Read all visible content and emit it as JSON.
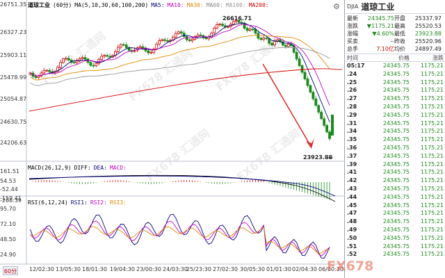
{
  "header": {
    "symbol_label": "道琼工业",
    "period": "(60分)",
    "ma_params": "MA(5,10,30,60,100,200)",
    "ma_items": [
      "MA5:",
      "MA10:",
      "MA30:",
      "MA60:",
      "MA100:",
      "MA200:"
    ]
  },
  "price_axis": [
    "26751.35",
    "26327.23",
    "25903.11",
    "25478.99",
    "25054.87",
    "24630.75",
    "24206.63"
  ],
  "high_marker": "26616.71",
  "low_marker": "23923.88",
  "macd": {
    "label": "MACD(26,12,9)",
    "items": [
      "DIFF:",
      "DEA:",
      "MACD:"
    ],
    "axis": [
      "161.51",
      "54.53",
      "-52.44",
      "-159.41",
      "-266.39"
    ]
  },
  "rsi": {
    "label": "RSI(6,12,24)",
    "items": [
      "RSI1:",
      "RSI2:",
      "RSI3:"
    ],
    "axis": [
      "95.70",
      "72.10",
      "48.50",
      "24.90"
    ]
  },
  "x_axis": [
    "12/02:30",
    "13/05:30",
    "18/01:30",
    "19/04:30",
    "23/00:30",
    "24/03:30",
    "25/23:30",
    "27/02:30",
    "30/05:30",
    "01/01:30",
    "02/04:30",
    "06/00:30"
  ],
  "period_button": "60分",
  "watermark": "FX678 汇通网",
  "logo_text": "FX678",
  "colors": {
    "up": "#d40000",
    "down": "#1a8a1a",
    "ma5": "#000080",
    "ma10": "#c000c0",
    "ma30": "#e08a00",
    "ma60": "#999999",
    "ma100": "#d40000",
    "arrow": "#e03030"
  },
  "quote": {
    "code": "DJIA",
    "name": "道琼工业",
    "rows": [
      [
        "最新",
        "24345.75",
        "开盘",
        "25337.97"
      ],
      [
        "涨跌",
        "▼1175.21",
        "最高",
        "25520.53"
      ],
      [
        "涨幅",
        "▼4.60%",
        "最低",
        "23923.88"
      ],
      [
        "买卖",
        "--",
        "昨收",
        "25520.96"
      ],
      [
        "总手",
        "7.10亿",
        "均价",
        "24897.49"
      ]
    ],
    "tick_headers": [
      "时间",
      "价格",
      "涨跌"
    ],
    "ticks": [
      [
        "05:17",
        "24345.75",
        "1175.21"
      ],
      [
        ".24",
        "24345.75",
        "1175.21"
      ],
      [
        ".25",
        "24345.75",
        "1175.21"
      ],
      [
        ".26",
        "24345.75",
        "1175.21"
      ],
      [
        ".27",
        "24345.75",
        "1175.21"
      ],
      [
        ".28",
        "24345.75",
        "1175.21"
      ],
      [
        ".29",
        "24345.75",
        "1175.21"
      ],
      [
        ".31",
        "24345.75",
        "1175.21"
      ],
      [
        ".34",
        "24345.75",
        "1175.21"
      ],
      [
        ".35",
        "24345.75",
        "1175.21"
      ],
      [
        ".36",
        "24345.75",
        "1175.21"
      ],
      [
        ".37",
        "24345.75",
        "1175.21"
      ],
      [
        ".39",
        "24345.75",
        "1175.21"
      ],
      [
        ".41",
        "24345.75",
        "1175.21"
      ],
      [
        ".42",
        "24345.75",
        "1175.21"
      ],
      [
        ".43",
        "24345.75",
        "1175.21"
      ],
      [
        ".44",
        "24345.75",
        "1175.21"
      ],
      [
        ".45",
        "24345.75",
        "1175.21"
      ],
      [
        ".47",
        "24345.75",
        "1175.21"
      ],
      [
        ".48",
        "24345.75",
        "1175.21"
      ],
      [
        ".49",
        "24345.75",
        "1175.21"
      ],
      [
        ".50",
        "24345.75",
        "1175.21"
      ],
      [
        ".51",
        "24345.75",
        "1175.21"
      ],
      [
        ".52",
        "24345.75",
        "1175.21"
      ]
    ]
  }
}
